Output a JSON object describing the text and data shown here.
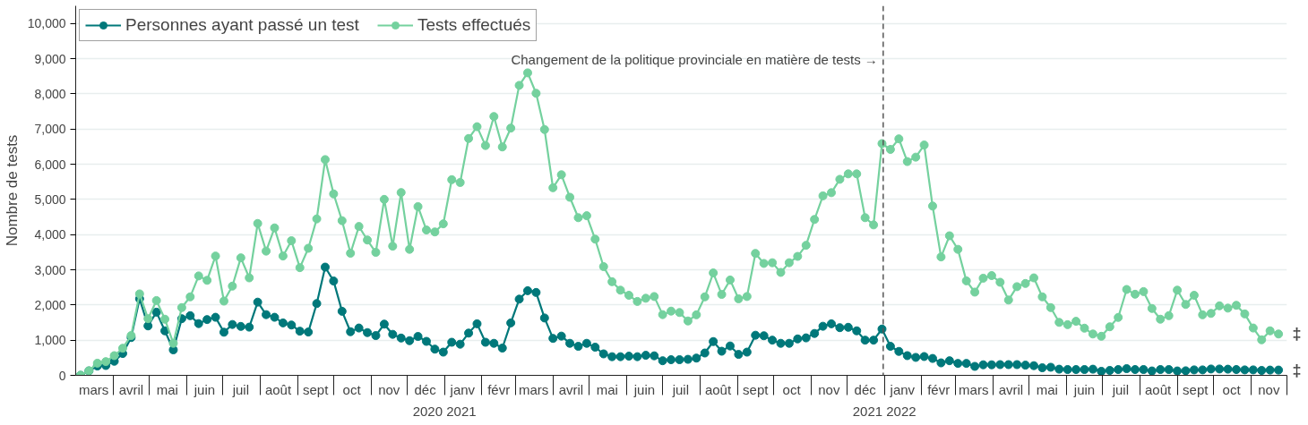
{
  "chart_data": {
    "type": "line",
    "ylabel": "Nombre de tests",
    "x": [
      "2020-03-05",
      "2020-03-12",
      "2020-03-19",
      "2020-03-26",
      "2020-04-02",
      "2020-04-09",
      "2020-04-16",
      "2020-04-23",
      "2020-04-30",
      "2020-05-07",
      "2020-05-14",
      "2020-05-21",
      "2020-05-28",
      "2020-06-04",
      "2020-06-11",
      "2020-06-18",
      "2020-06-25",
      "2020-07-02",
      "2020-07-09",
      "2020-07-16",
      "2020-07-23",
      "2020-07-30",
      "2020-08-06",
      "2020-08-13",
      "2020-08-20",
      "2020-08-27",
      "2020-09-03",
      "2020-09-10",
      "2020-09-17",
      "2020-09-24",
      "2020-10-01",
      "2020-10-08",
      "2020-10-15",
      "2020-10-22",
      "2020-10-29",
      "2020-11-05",
      "2020-11-12",
      "2020-11-19",
      "2020-11-26",
      "2020-12-03",
      "2020-12-10",
      "2020-12-17",
      "2020-12-24",
      "2020-12-31",
      "2021-01-07",
      "2021-01-14",
      "2021-01-21",
      "2021-01-28",
      "2021-02-04",
      "2021-02-11",
      "2021-02-18",
      "2021-02-25",
      "2021-03-04",
      "2021-03-11",
      "2021-03-18",
      "2021-03-25",
      "2021-04-01",
      "2021-04-08",
      "2021-04-15",
      "2021-04-22",
      "2021-04-29",
      "2021-05-06",
      "2021-05-13",
      "2021-05-20",
      "2021-05-27",
      "2021-06-03",
      "2021-06-10",
      "2021-06-17",
      "2021-06-24",
      "2021-07-01",
      "2021-07-08",
      "2021-07-15",
      "2021-07-22",
      "2021-07-29",
      "2021-08-05",
      "2021-08-12",
      "2021-08-19",
      "2021-08-26",
      "2021-09-02",
      "2021-09-09",
      "2021-09-16",
      "2021-09-23",
      "2021-09-30",
      "2021-10-07",
      "2021-10-14",
      "2021-10-21",
      "2021-10-28",
      "2021-11-04",
      "2021-11-11",
      "2021-11-18",
      "2021-11-25",
      "2021-12-02",
      "2021-12-09",
      "2021-12-16",
      "2021-12-23",
      "2021-12-30",
      "2022-01-06",
      "2022-01-13",
      "2022-01-20",
      "2022-01-27",
      "2022-02-03",
      "2022-02-10",
      "2022-02-17",
      "2022-02-24",
      "2022-03-03",
      "2022-03-10",
      "2022-03-17",
      "2022-03-24",
      "2022-03-31",
      "2022-04-07",
      "2022-04-14",
      "2022-04-21",
      "2022-04-28",
      "2022-05-05",
      "2022-05-12",
      "2022-05-19",
      "2022-05-26",
      "2022-06-02",
      "2022-06-09",
      "2022-06-16",
      "2022-06-23",
      "2022-06-30",
      "2022-07-07",
      "2022-07-14",
      "2022-07-21",
      "2022-07-28",
      "2022-08-04",
      "2022-08-11",
      "2022-08-18",
      "2022-08-25",
      "2022-09-01",
      "2022-09-08",
      "2022-09-15",
      "2022-09-22",
      "2022-09-29",
      "2022-10-06",
      "2022-10-13",
      "2022-10-20",
      "2022-10-27",
      "2022-11-03",
      "2022-11-10",
      "2022-11-17",
      "2022-11-24"
    ],
    "series": [
      {
        "name": "Personnes ayant passé un test",
        "color": "#00787a",
        "values": [
          0,
          125,
          265,
          280,
          400,
          620,
          1075,
          2175,
          1405,
          1795,
          1265,
          725,
          1610,
          1695,
          1470,
          1585,
          1650,
          1225,
          1445,
          1390,
          1370,
          2080,
          1725,
          1650,
          1490,
          1430,
          1255,
          1230,
          2040,
          3075,
          2680,
          1820,
          1240,
          1345,
          1215,
          1130,
          1455,
          1165,
          1060,
          985,
          1105,
          965,
          745,
          660,
          940,
          885,
          1200,
          1465,
          940,
          910,
          775,
          1490,
          2165,
          2405,
          2355,
          1630,
          1050,
          1115,
          910,
          825,
          910,
          800,
          610,
          530,
          530,
          545,
          530,
          570,
          555,
          415,
          445,
          445,
          455,
          490,
          635,
          960,
          685,
          835,
          595,
          660,
          1140,
          1125,
          1000,
          910,
          910,
          1035,
          1065,
          1190,
          1395,
          1465,
          1355,
          1365,
          1265,
          1000,
          1000,
          1315,
          825,
          680,
          560,
          510,
          535,
          480,
          355,
          415,
          340,
          340,
          255,
          300,
          300,
          305,
          305,
          305,
          290,
          275,
          215,
          230,
          175,
          165,
          165,
          165,
          175,
          115,
          140,
          165,
          190,
          165,
          165,
          125,
          165,
          165,
          125,
          130,
          155,
          155,
          180,
          180,
          175,
          165,
          155,
          155,
          140,
          150,
          150
        ]
      },
      {
        "name": "Tests effectués",
        "color": "#74d19e",
        "values": [
          0,
          130,
          345,
          390,
          560,
          770,
          1130,
          2315,
          1610,
          2125,
          1595,
          910,
          1925,
          2230,
          2825,
          2700,
          3390,
          2110,
          2535,
          3340,
          2770,
          4315,
          3530,
          4190,
          3390,
          3825,
          3060,
          3610,
          4445,
          6130,
          5155,
          4395,
          3470,
          4230,
          3845,
          3495,
          5000,
          3670,
          5195,
          3580,
          4795,
          4130,
          4075,
          4305,
          5560,
          5480,
          6730,
          7065,
          6530,
          7355,
          6490,
          7025,
          8240,
          8595,
          8015,
          6985,
          5330,
          5700,
          5060,
          4480,
          4535,
          3870,
          3090,
          2660,
          2420,
          2275,
          2100,
          2190,
          2240,
          1725,
          1825,
          1785,
          1545,
          1720,
          2230,
          2910,
          2300,
          2710,
          2175,
          2240,
          3465,
          3180,
          3200,
          2925,
          3200,
          3380,
          3695,
          4430,
          5100,
          5190,
          5570,
          5725,
          5725,
          4480,
          4275,
          6585,
          6420,
          6720,
          6075,
          6200,
          6545,
          4810,
          3365,
          3965,
          3580,
          2685,
          2365,
          2760,
          2835,
          2645,
          2140,
          2520,
          2610,
          2770,
          2230,
          1925,
          1505,
          1440,
          1535,
          1340,
          1175,
          1110,
          1380,
          1645,
          2440,
          2305,
          2380,
          1900,
          1595,
          1695,
          2420,
          2015,
          2275,
          1720,
          1760,
          1975,
          1910,
          1990,
          1745,
          1345,
          1010,
          1265,
          1175
        ]
      }
    ],
    "xlim": [
      "2020-03-01",
      "2022-12-01"
    ],
    "xticks": [
      {
        "value": "2020-03-16",
        "label": "mars"
      },
      {
        "value": "2020-04-16",
        "label": "avril"
      },
      {
        "value": "2020-05-16",
        "label": "mai"
      },
      {
        "value": "2020-06-16",
        "label": "juin"
      },
      {
        "value": "2020-07-16",
        "label": "juil"
      },
      {
        "value": "2020-08-16",
        "label": "août"
      },
      {
        "value": "2020-09-16",
        "label": "sept"
      },
      {
        "value": "2020-10-16",
        "label": "oct"
      },
      {
        "value": "2020-11-16",
        "label": "nov"
      },
      {
        "value": "2020-12-16",
        "label": "déc"
      },
      {
        "value": "2021-01-16",
        "label": "janv"
      },
      {
        "value": "2021-02-15",
        "label": "févr"
      },
      {
        "value": "2021-03-16",
        "label": "mars"
      },
      {
        "value": "2021-04-16",
        "label": "avril"
      },
      {
        "value": "2021-05-16",
        "label": "mai"
      },
      {
        "value": "2021-06-16",
        "label": "juin"
      },
      {
        "value": "2021-07-16",
        "label": "juil"
      },
      {
        "value": "2021-08-16",
        "label": "août"
      },
      {
        "value": "2021-09-16",
        "label": "sept"
      },
      {
        "value": "2021-10-16",
        "label": "oct"
      },
      {
        "value": "2021-11-16",
        "label": "nov"
      },
      {
        "value": "2021-12-16",
        "label": "déc"
      },
      {
        "value": "2022-01-16",
        "label": "janv"
      },
      {
        "value": "2022-02-15",
        "label": "févr"
      },
      {
        "value": "2022-03-16",
        "label": "mars"
      },
      {
        "value": "2022-04-16",
        "label": "avril"
      },
      {
        "value": "2022-05-16",
        "label": "mai"
      },
      {
        "value": "2022-06-16",
        "label": "juin"
      },
      {
        "value": "2022-07-16",
        "label": "juil"
      },
      {
        "value": "2022-08-16",
        "label": "août"
      },
      {
        "value": "2022-09-16",
        "label": "sept"
      },
      {
        "value": "2022-10-16",
        "label": "oct"
      },
      {
        "value": "2022-11-16",
        "label": "nov"
      }
    ],
    "ylim": [
      0,
      10500
    ],
    "yticks": [
      {
        "value": 0,
        "label": "0"
      },
      {
        "value": 1000,
        "label": "1,000"
      },
      {
        "value": 2000,
        "label": "2,000"
      },
      {
        "value": 3000,
        "label": "3,000"
      },
      {
        "value": 4000,
        "label": "4,000"
      },
      {
        "value": 5000,
        "label": "5,000"
      },
      {
        "value": 6000,
        "label": "6,000"
      },
      {
        "value": 7000,
        "label": "7,000"
      },
      {
        "value": 8000,
        "label": "8,000"
      },
      {
        "value": 9000,
        "label": "9,000"
      },
      {
        "value": 10000,
        "label": "10,000"
      }
    ],
    "ref_lines": [
      {
        "axis": "x",
        "value": "2021-12-31",
        "label": "Changement de la politique provinciale en matière de tests →",
        "color": "#555555",
        "line_style": "dashed"
      }
    ],
    "annotations": [
      "2020 2021",
      "2021 2022",
      "‡",
      "‡"
    ],
    "grid": "y",
    "legend": "top left",
    "marker": "circle",
    "line_style": "solid"
  }
}
